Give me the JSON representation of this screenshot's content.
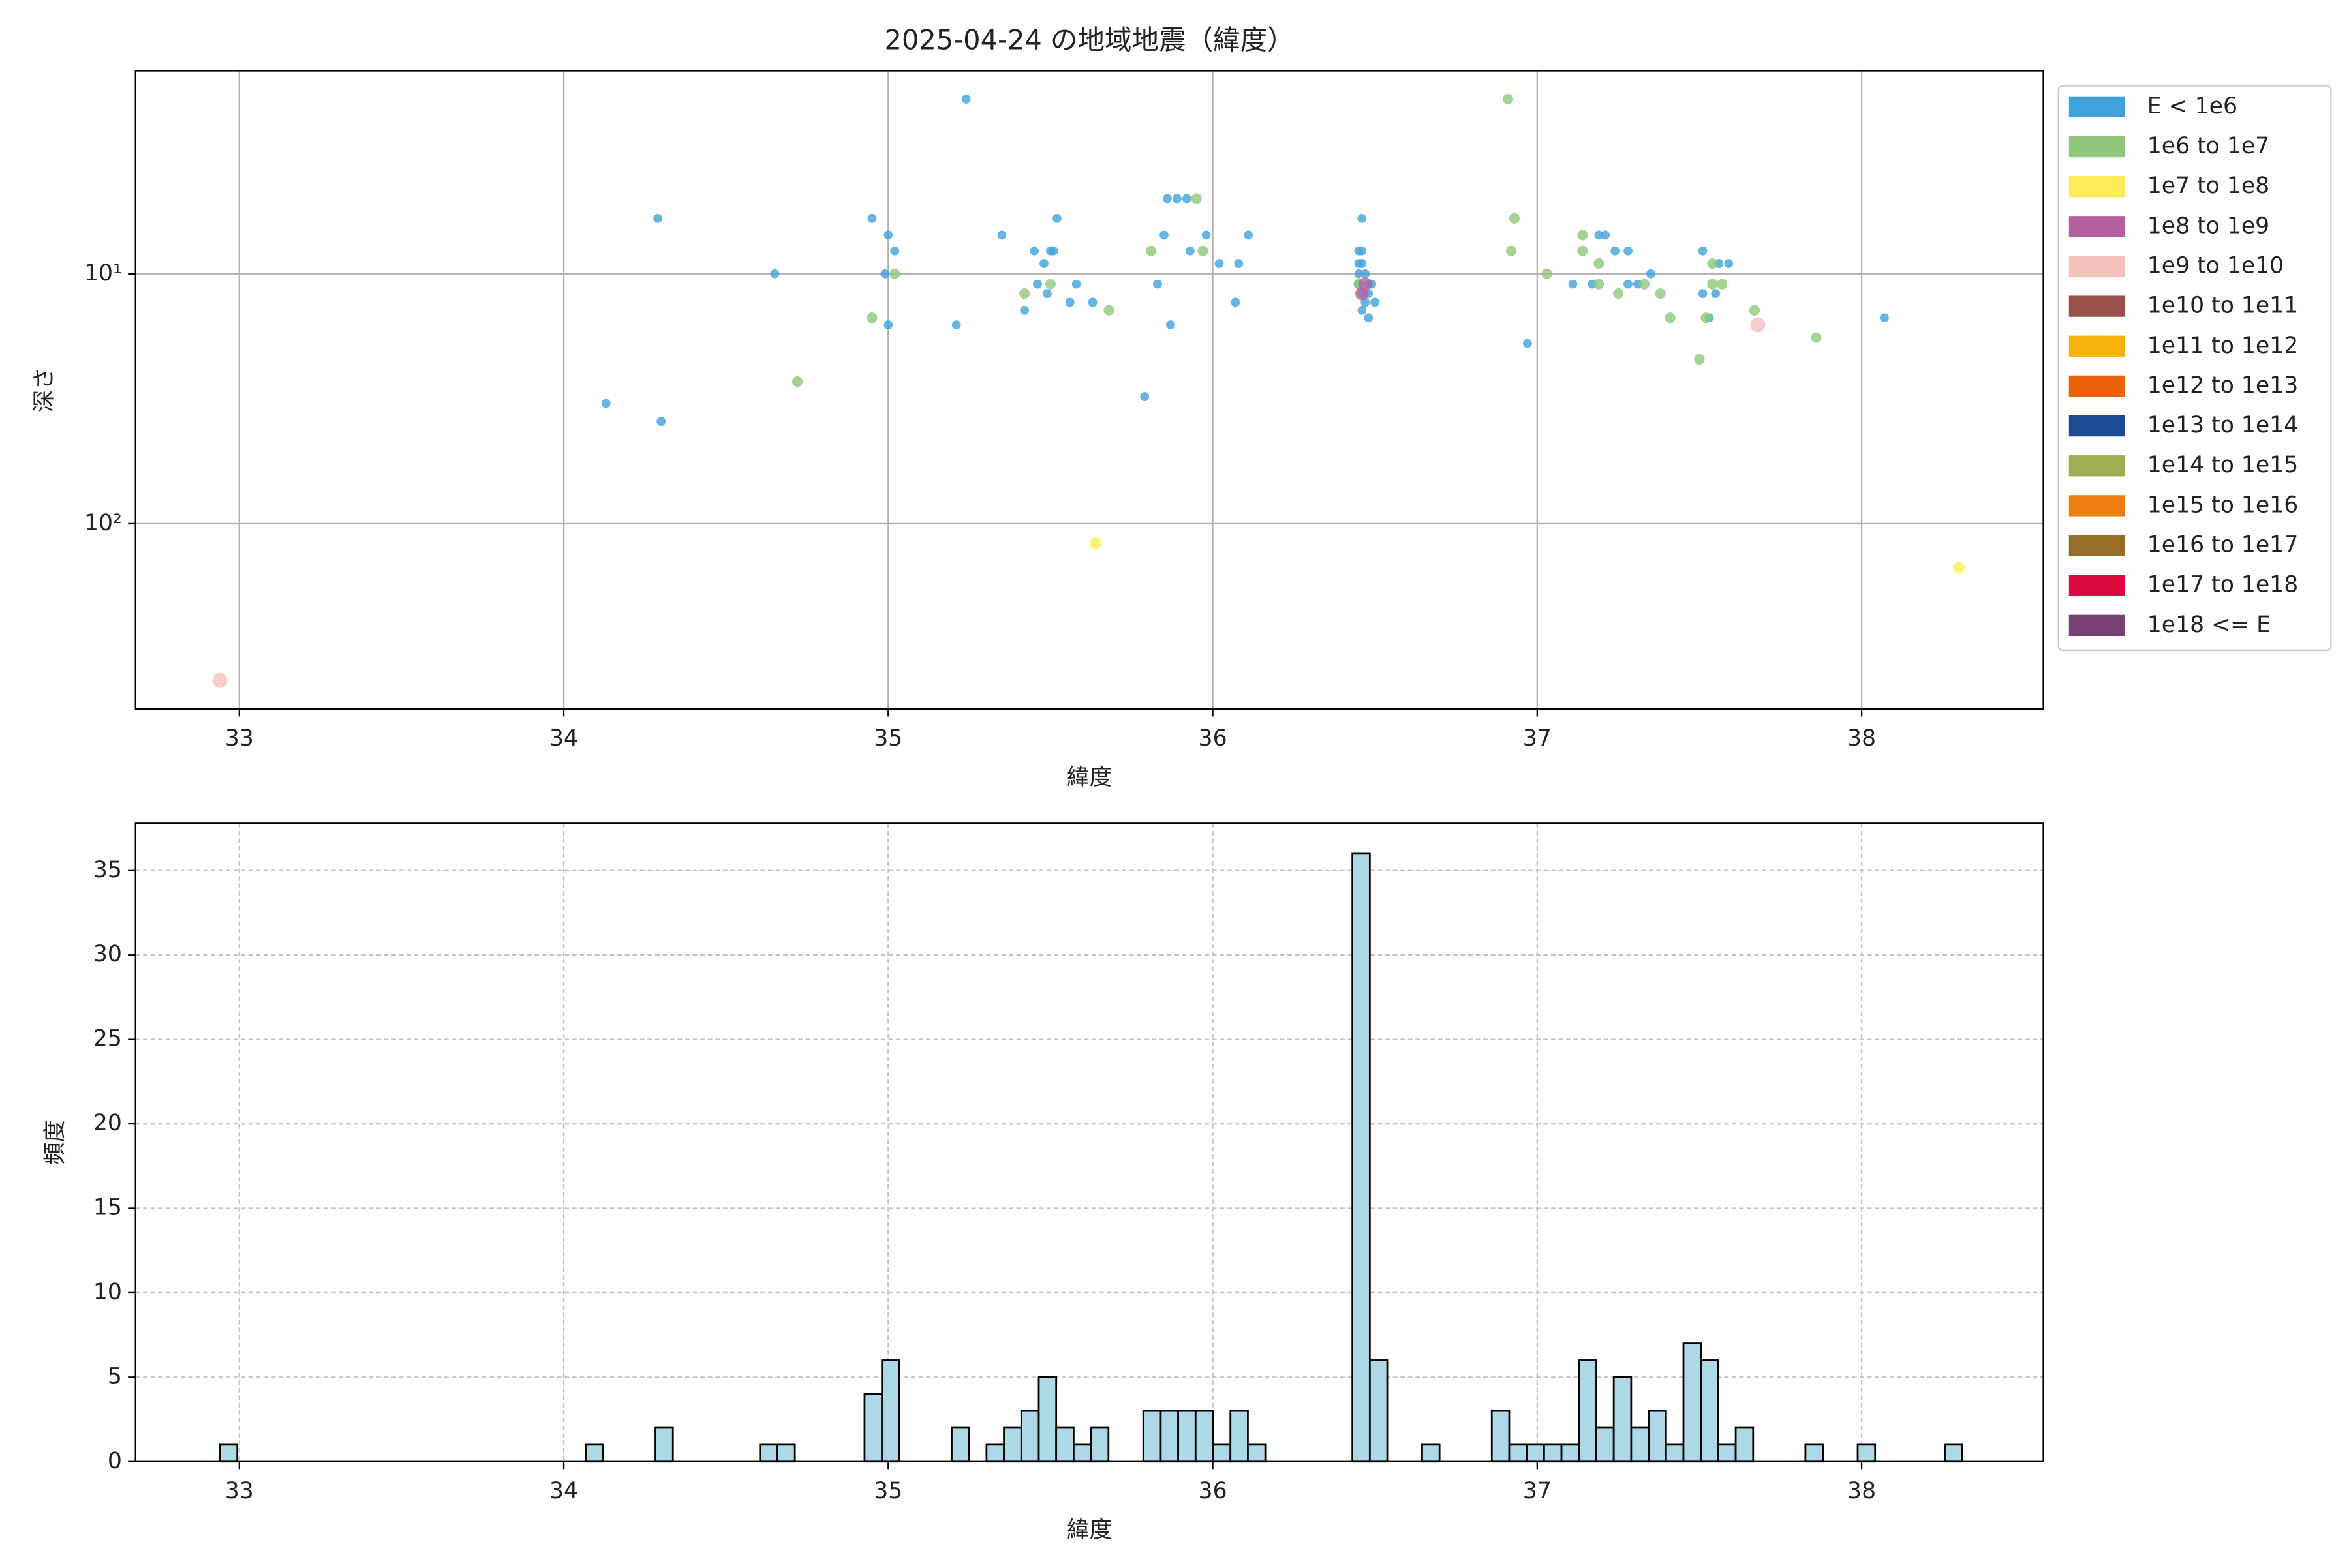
{
  "chart_data": [
    {
      "type": "scatter",
      "title": "2025-04-24 の地域地震（緯度）",
      "x_label": "緯度",
      "y_label": "深さ",
      "xlim": [
        32.68,
        38.56
      ],
      "xticks": [
        33,
        34,
        35,
        36,
        37,
        38
      ],
      "ylim": [
        551,
        1.54
      ],
      "yscale": "log",
      "yticks": [
        {
          "value": 10,
          "label": "10¹"
        },
        {
          "value": 100,
          "label": "10²"
        }
      ],
      "grid": "solid",
      "legend": "outside upper right",
      "series": [
        {
          "name": "E < 1e6",
          "color": "#3ea2dc",
          "x": [
            34.29,
            35.24,
            34.13,
            34.3,
            34.65,
            34.95,
            35.0,
            35.02,
            34.99,
            35.0,
            35.21,
            35.35,
            35.42,
            35.45,
            35.46,
            35.48,
            35.5,
            35.51,
            35.49,
            35.52,
            35.56,
            35.58,
            35.63,
            35.79,
            35.83,
            35.85,
            35.86,
            35.89,
            35.92,
            35.87,
            35.93,
            35.98,
            36.02,
            36.07,
            36.08,
            36.11,
            36.46,
            36.45,
            36.46,
            36.45,
            36.46,
            36.45,
            36.47,
            36.45,
            36.48,
            36.49,
            36.46,
            36.48,
            36.47,
            36.5,
            36.46,
            36.48,
            36.97,
            37.11,
            37.17,
            37.19,
            37.21,
            37.24,
            37.28,
            37.28,
            37.31,
            37.35,
            37.51,
            37.51,
            37.53,
            37.55,
            37.56,
            37.59,
            38.07
          ],
          "values": [
            6.0,
            2.0,
            33,
            39,
            10,
            6.0,
            7.0,
            8.1,
            10,
            16,
            16,
            7.0,
            14,
            8.1,
            11,
            9.1,
            8.1,
            8.1,
            12,
            6.0,
            13,
            11,
            13,
            31,
            11,
            7.0,
            5.0,
            5.0,
            5.0,
            16,
            8.1,
            7.0,
            9.1,
            13,
            9.1,
            7.0,
            6.0,
            8.1,
            8.1,
            9.1,
            9.1,
            10,
            10,
            11,
            11,
            11,
            12,
            12,
            13,
            13,
            14,
            15,
            19,
            11,
            11,
            7.0,
            7.0,
            8.1,
            8.1,
            11,
            11,
            10,
            8.1,
            12,
            15,
            12,
            9.1,
            9.1,
            15
          ]
        },
        {
          "name": "1e6 to 1e7",
          "color": "#8ec878",
          "x": [
            36.91,
            36.93,
            36.92,
            35.95,
            35.81,
            35.97,
            34.95,
            35.02,
            34.72,
            35.42,
            35.5,
            35.68,
            37.03,
            37.14,
            37.14,
            37.19,
            37.19,
            37.25,
            37.33,
            37.38,
            37.41,
            37.5,
            37.52,
            37.54,
            37.54,
            37.57,
            37.67,
            37.86,
            36.45
          ],
          "values": [
            2.0,
            6.0,
            8.1,
            5.0,
            8.1,
            8.1,
            15,
            10,
            27,
            12,
            11,
            14,
            10,
            7.0,
            8.1,
            9.1,
            11,
            12,
            11,
            12,
            15,
            22,
            15,
            9.1,
            11,
            11,
            14,
            18,
            11
          ]
        },
        {
          "name": "1e7 to 1e8",
          "color": "#fcec5c",
          "x": [
            35.64,
            38.3
          ],
          "values": [
            120,
            150
          ]
        },
        {
          "name": "1e8 to 1e9",
          "color": "#b5619f",
          "x": [
            36.46,
            36.47
          ],
          "values": [
            12,
            11
          ]
        },
        {
          "name": "1e9 to 1e10",
          "color": "#f5c1bc",
          "x": [
            32.94,
            37.68
          ],
          "values": [
            424,
            16
          ]
        },
        {
          "name": "1e10 to 1e11",
          "color": "#985249",
          "x": [],
          "values": []
        },
        {
          "name": "1e11 to 1e12",
          "color": "#f7b10b",
          "x": [],
          "values": []
        },
        {
          "name": "1e12 to 1e13",
          "color": "#ec6208",
          "x": [],
          "values": []
        },
        {
          "name": "1e13 to 1e14",
          "color": "#1a4a92",
          "x": [],
          "values": []
        },
        {
          "name": "1e14 to 1e15",
          "color": "#9ead52",
          "x": [],
          "values": []
        },
        {
          "name": "1e15 to 1e16",
          "color": "#ef7d10",
          "x": [],
          "values": []
        },
        {
          "name": "1e16 to 1e17",
          "color": "#956c28",
          "x": [],
          "values": []
        },
        {
          "name": "1e17 to 1e18",
          "color": "#dd0a42",
          "x": [],
          "values": []
        },
        {
          "name": "1e18 <= E",
          "color": "#774271",
          "x": [],
          "values": []
        }
      ]
    },
    {
      "type": "histogram",
      "x_label": "緯度",
      "y_label": "頻度",
      "color": "#add8e6",
      "xlim": [
        32.68,
        38.56
      ],
      "xticks": [
        33,
        34,
        35,
        36,
        37,
        38
      ],
      "ylim": [
        0,
        37.8
      ],
      "yticks": [
        0,
        5,
        10,
        15,
        20,
        25,
        30,
        35
      ],
      "grid": "dashed",
      "bins": [
        32.94,
        32.9937,
        33.0474,
        33.1011,
        33.1548,
        33.2085,
        33.2622,
        33.3159,
        33.3696,
        33.4233,
        33.477,
        33.5307,
        33.5844,
        33.6381,
        33.6918,
        33.7455,
        33.7992,
        33.8529,
        33.9066,
        33.9603,
        34.014,
        34.0677,
        34.1214,
        34.1751,
        34.2288,
        34.2825,
        34.3362,
        34.3899,
        34.4436,
        34.4973,
        34.551,
        34.6047,
        34.6584,
        34.7121,
        34.7658,
        34.8195,
        34.8732,
        34.9269,
        34.9806,
        35.0343,
        35.088,
        35.1417,
        35.1954,
        35.2491,
        35.3028,
        35.3565,
        35.4102,
        35.4639,
        35.5176,
        35.5713,
        35.625,
        35.6787,
        35.7324,
        35.7861,
        35.8398,
        35.8935,
        35.9472,
        36.0009,
        36.0546,
        36.1083,
        36.162,
        36.2157,
        36.2694,
        36.3231,
        36.3768,
        36.4305,
        36.4842,
        36.5379,
        36.5916,
        36.6453,
        36.699,
        36.7527,
        36.8064,
        36.8601,
        36.9138,
        36.9675,
        37.0212,
        37.0749,
        37.1286,
        37.1823,
        37.236,
        37.2897,
        37.3434,
        37.3971,
        37.4508,
        37.5045,
        37.5582,
        37.6119,
        37.6656,
        37.7193,
        37.773,
        37.8267,
        37.8804,
        37.9341,
        37.9878,
        38.0415,
        38.0952,
        38.1489,
        38.2026,
        38.2563,
        38.31
      ],
      "values": [
        1,
        0,
        0,
        0,
        0,
        0,
        0,
        0,
        0,
        0,
        0,
        0,
        0,
        0,
        0,
        0,
        0,
        0,
        0,
        0,
        0,
        1,
        0,
        0,
        0,
        2,
        0,
        0,
        0,
        0,
        0,
        1,
        1,
        0,
        0,
        0,
        0,
        4,
        6,
        0,
        0,
        0,
        2,
        0,
        1,
        2,
        3,
        5,
        2,
        1,
        2,
        0,
        0,
        3,
        3,
        3,
        3,
        1,
        3,
        1,
        0,
        0,
        0,
        0,
        0,
        36,
        6,
        0,
        0,
        1,
        0,
        0,
        0,
        3,
        1,
        1,
        1,
        1,
        6,
        2,
        5,
        2,
        3,
        1,
        7,
        6,
        1,
        2,
        0,
        0,
        0,
        1,
        0,
        0,
        1,
        0,
        0,
        0,
        0,
        1
      ]
    }
  ]
}
